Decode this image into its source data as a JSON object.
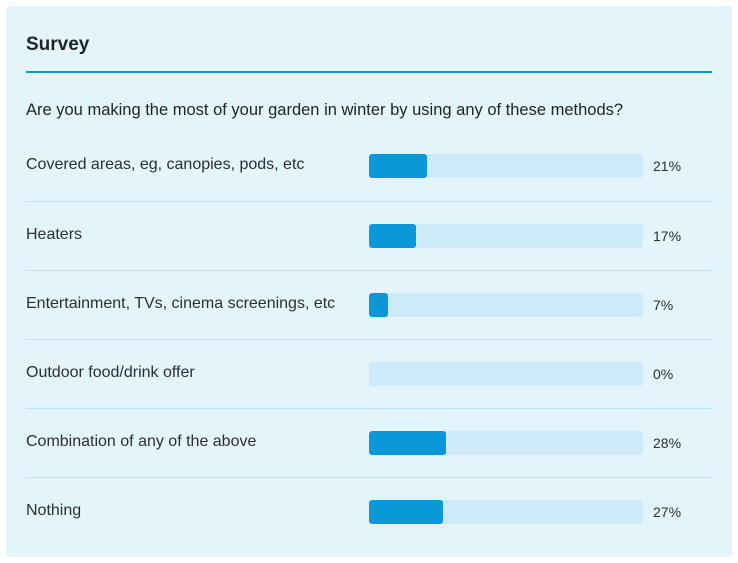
{
  "survey": {
    "title": "Survey",
    "question": "Are you making the most of your garden in winter by using any of these methods?",
    "options": [
      {
        "label": "Covered areas, eg, canopies, pods, etc",
        "percent_text": "21%",
        "percent": 21
      },
      {
        "label": "Heaters",
        "percent_text": "17%",
        "percent": 17
      },
      {
        "label": "Entertainment, TVs, cinema screenings, etc",
        "percent_text": "7%",
        "percent": 7
      },
      {
        "label": "Outdoor food/drink offer",
        "percent_text": "0%",
        "percent": 0
      },
      {
        "label": "Combination of any of the above",
        "percent_text": "28%",
        "percent": 28
      },
      {
        "label": "Nothing",
        "percent_text": "27%",
        "percent": 27
      }
    ]
  },
  "colors": {
    "accent": "#0a98d8",
    "track": "#cdeaf8",
    "card_background": "#e3f4fb"
  }
}
